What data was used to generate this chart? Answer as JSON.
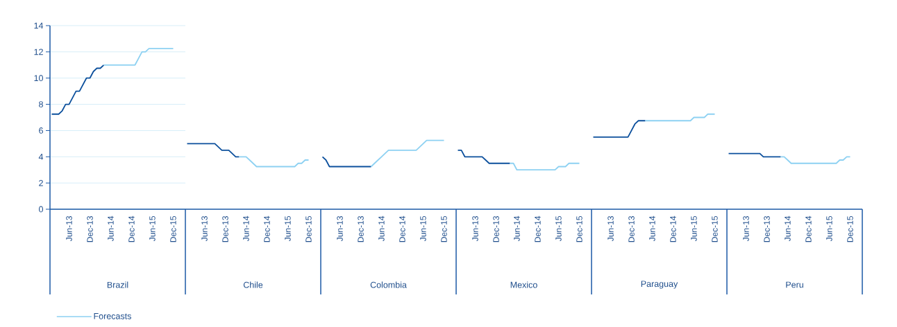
{
  "chart_data": [
    {
      "type": "line",
      "xlabel": "Brazil",
      "categories": [
        null,
        null,
        null,
        null,
        null,
        "Jun-13",
        null,
        null,
        null,
        null,
        null,
        "Dec-13",
        null,
        null,
        null,
        null,
        null,
        "Jun-14",
        null,
        null,
        null,
        null,
        null,
        "Dec-14",
        null,
        null,
        null,
        null,
        null,
        "Jun-15",
        null,
        null,
        null,
        null,
        null,
        "Dec-15",
        null,
        null,
        null
      ],
      "ylim": [
        0,
        14
      ],
      "yticks": [
        0,
        2,
        4,
        6,
        8,
        10,
        12,
        14
      ],
      "grid": "y",
      "legend": "bottom left",
      "marker": "none",
      "series": [
        {
          "color": "#0B4F9C",
          "values": [
            7.25,
            7.25,
            7.25,
            7.5,
            8,
            8,
            8.5,
            9,
            9,
            9.5,
            10,
            10,
            10.5,
            10.75,
            10.75,
            11,
            null,
            null,
            null,
            null,
            null,
            null,
            null,
            null,
            null,
            null,
            null,
            null,
            null,
            null,
            null,
            null,
            null,
            null,
            null,
            null,
            null,
            null,
            null
          ]
        },
        {
          "name": "Forecasts",
          "color": "#8DD1F2",
          "values": [
            null,
            null,
            null,
            null,
            null,
            null,
            null,
            null,
            null,
            null,
            null,
            null,
            null,
            null,
            null,
            11,
            11,
            11,
            11,
            11,
            11,
            11,
            11,
            11,
            11,
            11.5,
            12,
            12,
            12.25,
            12.25,
            12.25,
            12.25,
            12.25,
            12.25,
            12.25,
            12.25,
            null,
            null,
            null
          ]
        }
      ]
    },
    {
      "type": "line",
      "xlabel": "Chile",
      "categories": [
        null,
        null,
        null,
        null,
        null,
        "Jun-13",
        null,
        null,
        null,
        null,
        null,
        "Dec-13",
        null,
        null,
        null,
        null,
        null,
        "Jun-14",
        null,
        null,
        null,
        null,
        null,
        "Dec-14",
        null,
        null,
        null,
        null,
        null,
        "Jun-15",
        null,
        null,
        null,
        null,
        null,
        "Dec-15",
        null,
        null,
        null
      ],
      "ylim": [
        0,
        14
      ],
      "yticks": [
        0,
        2,
        4,
        6,
        8,
        10,
        12,
        14
      ],
      "grid": "y",
      "tick_labels": "x",
      "marker": "none",
      "series": [
        {
          "color": "#0B4F9C",
          "values": [
            5,
            5,
            5,
            5,
            5,
            5,
            5,
            5,
            5,
            4.75,
            4.5,
            4.5,
            4.5,
            4.25,
            4,
            4,
            null,
            null,
            null,
            null,
            null,
            null,
            null,
            null,
            null,
            null,
            null,
            null,
            null,
            null,
            null,
            null,
            null,
            null,
            null,
            null,
            null,
            null,
            null
          ]
        },
        {
          "color": "#8DD1F2",
          "values": [
            null,
            null,
            null,
            null,
            null,
            null,
            null,
            null,
            null,
            null,
            null,
            null,
            null,
            null,
            null,
            4,
            4,
            4,
            3.75,
            3.5,
            3.25,
            3.25,
            3.25,
            3.25,
            3.25,
            3.25,
            3.25,
            3.25,
            3.25,
            3.25,
            3.25,
            3.25,
            3.5,
            3.5,
            3.75,
            3.75,
            null,
            null,
            null
          ]
        }
      ]
    },
    {
      "type": "line",
      "xlabel": "Colombia",
      "categories": [
        null,
        null,
        null,
        null,
        null,
        "Jun-13",
        null,
        null,
        null,
        null,
        null,
        "Dec-13",
        null,
        null,
        null,
        null,
        null,
        "Jun-14",
        null,
        null,
        null,
        null,
        null,
        "Dec-14",
        null,
        null,
        null,
        null,
        null,
        "Jun-15",
        null,
        null,
        null,
        null,
        null,
        "Dec-15",
        null,
        null,
        null
      ],
      "ylim": [
        0,
        14
      ],
      "yticks": [
        0,
        2,
        4,
        6,
        8,
        10,
        12,
        14
      ],
      "grid": "y",
      "tick_labels": "x",
      "marker": "none",
      "series": [
        {
          "color": "#0B4F9C",
          "values": [
            4,
            3.75,
            3.25,
            3.25,
            3.25,
            3.25,
            3.25,
            3.25,
            3.25,
            3.25,
            3.25,
            3.25,
            3.25,
            3.25,
            3.25,
            null,
            null,
            null,
            null,
            null,
            null,
            null,
            null,
            null,
            null,
            null,
            null,
            null,
            null,
            null,
            null,
            null,
            null,
            null,
            null,
            null,
            null,
            null,
            null
          ]
        },
        {
          "color": "#8DD1F2",
          "values": [
            null,
            null,
            null,
            null,
            null,
            null,
            null,
            null,
            null,
            null,
            null,
            null,
            null,
            null,
            3.25,
            3.5,
            3.75,
            4,
            4.25,
            4.5,
            4.5,
            4.5,
            4.5,
            4.5,
            4.5,
            4.5,
            4.5,
            4.5,
            4.75,
            5,
            5.25,
            5.25,
            5.25,
            5.25,
            5.25,
            5.25,
            null,
            null,
            null
          ]
        }
      ]
    },
    {
      "type": "line",
      "xlabel": "Mexico",
      "categories": [
        null,
        null,
        null,
        null,
        null,
        "Jun-13",
        null,
        null,
        null,
        null,
        null,
        "Dec-13",
        null,
        null,
        null,
        null,
        null,
        "Jun-14",
        null,
        null,
        null,
        null,
        null,
        "Dec-14",
        null,
        null,
        null,
        null,
        null,
        "Jun-15",
        null,
        null,
        null,
        null,
        null,
        "Dec-15",
        null,
        null,
        null
      ],
      "ylim": [
        0,
        14
      ],
      "yticks": [
        0,
        2,
        4,
        6,
        8,
        10,
        12,
        14
      ],
      "grid": "y",
      "tick_labels": "x",
      "marker": "none",
      "series": [
        {
          "color": "#0B4F9C",
          "values": [
            4.5,
            4.5,
            4,
            4,
            4,
            4,
            4,
            4,
            3.75,
            3.5,
            3.5,
            3.5,
            3.5,
            3.5,
            3.5,
            3.5,
            null,
            null,
            null,
            null,
            null,
            null,
            null,
            null,
            null,
            null,
            null,
            null,
            null,
            null,
            null,
            null,
            null,
            null,
            null,
            null,
            null,
            null,
            null
          ]
        },
        {
          "color": "#8DD1F2",
          "values": [
            null,
            null,
            null,
            null,
            null,
            null,
            null,
            null,
            null,
            null,
            null,
            null,
            null,
            null,
            null,
            3.5,
            3.5,
            3,
            3,
            3,
            3,
            3,
            3,
            3,
            3,
            3,
            3,
            3,
            3,
            3.25,
            3.25,
            3.25,
            3.5,
            3.5,
            3.5,
            3.5,
            null,
            null,
            null
          ]
        }
      ]
    },
    {
      "type": "line",
      "xlabel": "Paraguay",
      "categories": [
        null,
        null,
        null,
        null,
        null,
        "Jun-13",
        null,
        null,
        null,
        null,
        null,
        "Dec-13",
        null,
        null,
        null,
        null,
        null,
        "Jun-14",
        null,
        null,
        null,
        null,
        null,
        "Dec-14",
        null,
        null,
        null,
        null,
        null,
        "Jun-15",
        null,
        null,
        null,
        null,
        null,
        "Dec-15",
        null,
        null,
        null
      ],
      "ylim": [
        0,
        14
      ],
      "yticks": [
        0,
        2,
        4,
        6,
        8,
        10,
        12,
        14
      ],
      "grid": "y",
      "tick_labels": "x",
      "marker": "none",
      "series": [
        {
          "color": "#0B4F9C",
          "values": [
            5.5,
            5.5,
            5.5,
            5.5,
            5.5,
            5.5,
            5.5,
            5.5,
            5.5,
            5.5,
            5.5,
            6,
            6.5,
            6.75,
            6.75,
            6.75,
            null,
            null,
            null,
            null,
            null,
            null,
            null,
            null,
            null,
            null,
            null,
            null,
            null,
            null,
            null,
            null,
            null,
            null,
            null,
            null,
            null,
            null,
            null
          ]
        },
        {
          "color": "#8DD1F2",
          "values": [
            null,
            null,
            null,
            null,
            null,
            null,
            null,
            null,
            null,
            null,
            null,
            null,
            null,
            null,
            null,
            6.75,
            6.75,
            6.75,
            6.75,
            6.75,
            6.75,
            6.75,
            6.75,
            6.75,
            6.75,
            6.75,
            6.75,
            6.75,
            6.75,
            7,
            7,
            7,
            7,
            7.25,
            7.25,
            7.25,
            null,
            null,
            null
          ]
        }
      ]
    },
    {
      "type": "line",
      "xlabel": "Peru",
      "categories": [
        null,
        null,
        null,
        null,
        null,
        "Jun-13",
        null,
        null,
        null,
        null,
        null,
        "Dec-13",
        null,
        null,
        null,
        null,
        null,
        "Jun-14",
        null,
        null,
        null,
        null,
        null,
        "Dec-14",
        null,
        null,
        null,
        null,
        null,
        "Jun-15",
        null,
        null,
        null,
        null,
        null,
        "Dec-15",
        null,
        null,
        null
      ],
      "ylim": [
        0,
        14
      ],
      "yticks": [
        0,
        2,
        4,
        6,
        8,
        10,
        12,
        14
      ],
      "grid": "y",
      "tick_labels": "x",
      "marker": "none",
      "series": [
        {
          "color": "#0B4F9C",
          "values": [
            4.25,
            4.25,
            4.25,
            4.25,
            4.25,
            4.25,
            4.25,
            4.25,
            4.25,
            4.25,
            4,
            4,
            4,
            4,
            4,
            4,
            null,
            null,
            null,
            null,
            null,
            null,
            null,
            null,
            null,
            null,
            null,
            null,
            null,
            null,
            null,
            null,
            null,
            null,
            null,
            null,
            null,
            null,
            null
          ]
        },
        {
          "color": "#8DD1F2",
          "values": [
            null,
            null,
            null,
            null,
            null,
            null,
            null,
            null,
            null,
            null,
            null,
            null,
            null,
            null,
            null,
            4,
            4,
            3.75,
            3.5,
            3.5,
            3.5,
            3.5,
            3.5,
            3.5,
            3.5,
            3.5,
            3.5,
            3.5,
            3.5,
            3.5,
            3.5,
            3.5,
            3.75,
            3.75,
            4,
            4,
            null,
            null,
            null
          ]
        }
      ]
    }
  ]
}
